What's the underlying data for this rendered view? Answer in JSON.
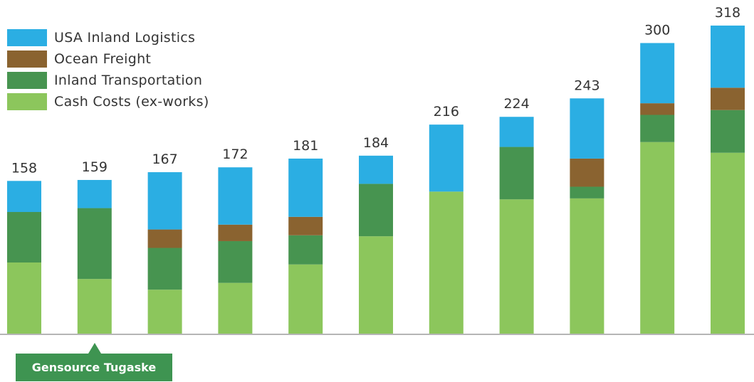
{
  "chart_data": {
    "type": "bar",
    "stacked": true,
    "categories": [
      "",
      "Gensource Tugaske",
      "",
      "",
      "",
      "",
      "",
      "",
      "",
      "",
      ""
    ],
    "series": [
      {
        "name": "Cash Costs (ex-works)",
        "color": "#8cc65c",
        "values": [
          74,
          57,
          46,
          53,
          72,
          101,
          147,
          139,
          140,
          198,
          187
        ]
      },
      {
        "name": "Inland Transportation",
        "color": "#479450",
        "values": [
          52,
          73,
          43,
          43,
          30,
          54,
          0,
          54,
          12,
          28,
          44
        ]
      },
      {
        "name": "Ocean Freight",
        "color": "#8a6330",
        "values": [
          0,
          0,
          19,
          17,
          19,
          0,
          0,
          0,
          29,
          12,
          23
        ]
      },
      {
        "name": "USA Inland Logistics",
        "color": "#2baee3",
        "values": [
          32,
          29,
          59,
          59,
          60,
          29,
          69,
          31,
          62,
          62,
          64
        ]
      }
    ],
    "totals": [
      158,
      159,
      167,
      172,
      181,
      184,
      216,
      224,
      243,
      300,
      318
    ],
    "legend_position": "top-left",
    "grid": false
  },
  "legend": {
    "items": [
      {
        "label": "USA Inland Logistics",
        "color": "#2baee3"
      },
      {
        "label": "Ocean Freight",
        "color": "#8a6330"
      },
      {
        "label": "Inland Transportation",
        "color": "#479450"
      },
      {
        "label": "Cash Costs (ex-works)",
        "color": "#8cc65c"
      }
    ]
  },
  "callout": {
    "label": "Gensource Tugaske",
    "color": "#3e9451"
  }
}
